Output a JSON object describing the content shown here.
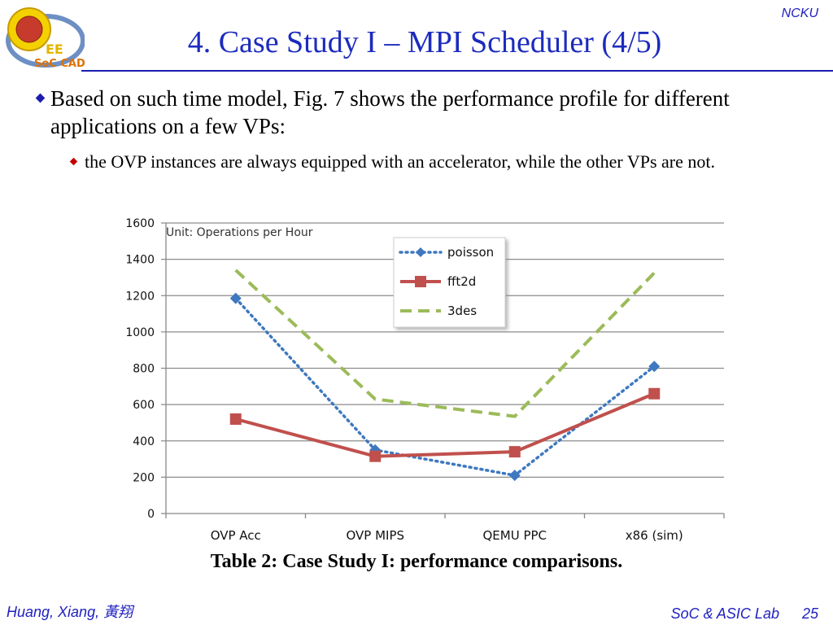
{
  "slide": {
    "org": "NCKU",
    "title": "4. Case Study I – MPI Scheduler (4/5)",
    "bullet1": "Based on such time model, Fig. 7 shows the performance profile for different applications on a few VPs:",
    "bullet2": "the OVP instances are always equipped with an accelerator, while the other VPs are not.",
    "caption": "Table 2: Case Study I: performance comparisons.",
    "author": "Huang, Xiang,  黃翔",
    "lab": "SoC & ASIC Lab",
    "page": "25",
    "logo": {
      "text_top": "EE",
      "text_bottom": "SoC CAD"
    },
    "colors": {
      "title": "#1c2bbd",
      "accent": "#1c1cb0",
      "bullet2": "#c00000"
    }
  },
  "chart_data": {
    "type": "line",
    "annotation": "Unit: Operations per Hour",
    "categories": [
      "OVP Acc",
      "OVP MIPS",
      "QEMU PPC",
      "x86 (sim)"
    ],
    "ylim": [
      0,
      1600
    ],
    "yticks": [
      "0",
      "200",
      "400",
      "600",
      "800",
      "1000",
      "1200",
      "1400",
      "1600"
    ],
    "grid": true,
    "legend_position": "top-right",
    "series": [
      {
        "name": "poisson",
        "values": [
          1185,
          350,
          210,
          810
        ],
        "color": "#3e78c0",
        "style": "dotted",
        "marker": "diamond"
      },
      {
        "name": "fft2d",
        "values": [
          520,
          315,
          340,
          660
        ],
        "color": "#c0504d",
        "style": "solid",
        "marker": "square"
      },
      {
        "name": "3des",
        "values": [
          1340,
          630,
          535,
          1325
        ],
        "color": "#9bbb59",
        "style": "dashed",
        "marker": "none"
      }
    ]
  }
}
